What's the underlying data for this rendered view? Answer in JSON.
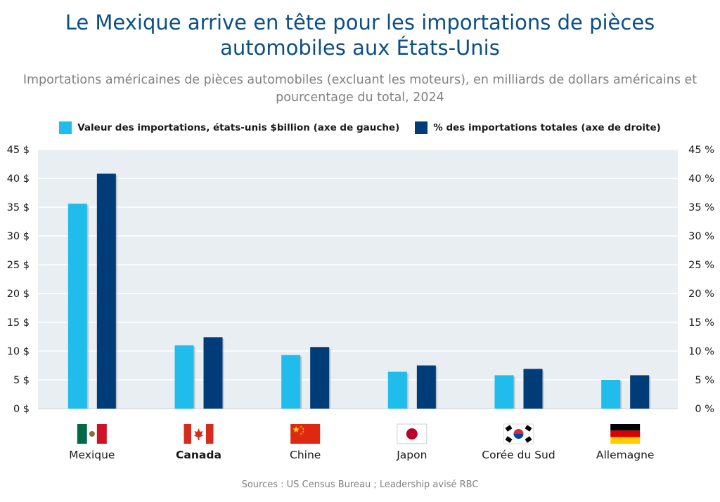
{
  "header": {
    "title": "Le Mexique arrive en tête pour les importations de pièces automobiles aux États-Unis",
    "subtitle": "Importations américaines de pièces automobiles (excluant les moteurs), en milliards de dollars américains et pourcentage du total, 2024"
  },
  "legend": [
    {
      "label": "Valeur des importations, états-unis $billion (axe de gauche)",
      "color": "#1fbcec"
    },
    {
      "label": "% des importations totales (axe de droite)",
      "color": "#003d78"
    }
  ],
  "footer": {
    "source": "Sources : US Census Bureau ; Leadership avisé RBC"
  },
  "chart_data": {
    "type": "bar",
    "categories": [
      "Mexique",
      "Canada",
      "Chine",
      "Japon",
      "Corée du Sud",
      "Allemagne"
    ],
    "highlight_category": "Canada",
    "flag_icons": [
      "mexico-flag-icon",
      "canada-flag-icon",
      "china-flag-icon",
      "japan-flag-icon",
      "south-korea-flag-icon",
      "germany-flag-icon"
    ],
    "series": [
      {
        "name": "Valeur des importations, états-unis $billion (axe de gauche)",
        "axis": "left",
        "values": [
          35.6,
          11.0,
          9.3,
          6.4,
          5.8,
          5.0
        ],
        "color": "#1fbcec"
      },
      {
        "name": "% des importations totales (axe de droite)",
        "axis": "right",
        "values": [
          40.8,
          12.4,
          10.7,
          7.5,
          6.9,
          5.8
        ],
        "color": "#003d78"
      }
    ],
    "y_left": {
      "ylim": [
        0,
        45
      ],
      "ticks": [
        "0 $",
        "5 $",
        "10 $",
        "15 $",
        "20 $",
        "25 $",
        "30 $",
        "35 $",
        "40 $",
        "45 $"
      ]
    },
    "y_right": {
      "ylim": [
        0,
        45
      ],
      "ticks": [
        "0 %",
        "5 %",
        "10 %",
        "15 %",
        "20 %",
        "25 %",
        "30 %",
        "35 %",
        "40 %",
        "45 %"
      ]
    },
    "grid": true,
    "legend_position": "top",
    "plot_background": "#e9eef2"
  }
}
